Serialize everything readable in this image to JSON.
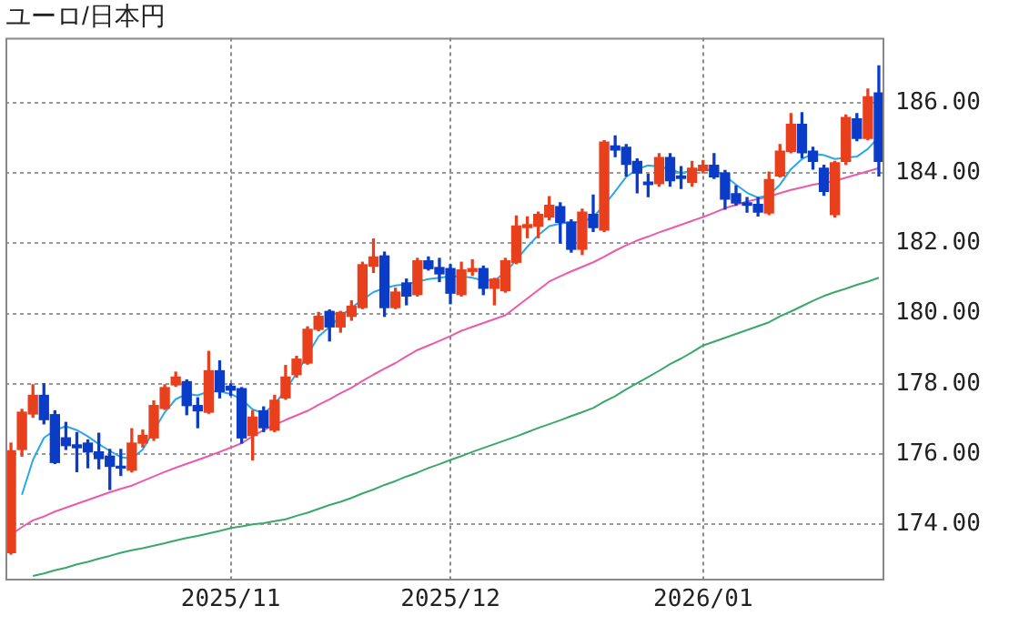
{
  "chart_data": {
    "type": "candlestick",
    "title": "ユーロ/日本円",
    "categories": [
      null,
      null,
      null,
      null,
      null,
      null,
      null,
      null,
      null,
      null,
      null,
      null,
      null,
      null,
      null,
      null,
      null,
      null,
      null,
      null,
      "2025/11",
      null,
      null,
      null,
      null,
      null,
      null,
      null,
      null,
      null,
      null,
      null,
      null,
      null,
      null,
      null,
      null,
      null,
      null,
      null,
      "2025/12",
      null,
      null,
      null,
      null,
      null,
      null,
      null,
      null,
      null,
      null,
      null,
      null,
      null,
      null,
      null,
      null,
      null,
      null,
      null,
      null,
      null,
      null,
      "2026/01",
      null,
      null,
      null,
      null,
      null,
      null,
      null,
      null,
      null,
      null,
      null,
      null,
      null,
      null,
      null,
      null
    ],
    "ohlc": [
      [
        173.19,
        176.31,
        173.15,
        176.09
      ],
      [
        176.13,
        177.27,
        175.94,
        177.19
      ],
      [
        177.14,
        177.97,
        177.05,
        177.67
      ],
      [
        177.67,
        178.0,
        176.86,
        176.98
      ],
      [
        177.12,
        177.23,
        175.73,
        175.76
      ],
      [
        176.46,
        176.9,
        176.13,
        176.24
      ],
      [
        176.26,
        176.61,
        175.5,
        176.18
      ],
      [
        176.31,
        176.4,
        175.61,
        176.06
      ],
      [
        176.06,
        176.59,
        175.58,
        175.87
      ],
      [
        175.94,
        176.13,
        174.99,
        175.65
      ],
      [
        175.65,
        176.13,
        175.39,
        175.6
      ],
      [
        175.54,
        176.72,
        175.49,
        176.31
      ],
      [
        176.31,
        176.68,
        176.2,
        176.53
      ],
      [
        176.46,
        177.51,
        176.39,
        177.38
      ],
      [
        177.3,
        177.97,
        177.27,
        177.89
      ],
      [
        177.97,
        178.33,
        177.93,
        178.19
      ],
      [
        178.06,
        178.11,
        177.12,
        177.38
      ],
      [
        177.38,
        177.6,
        176.75,
        177.23
      ],
      [
        177.19,
        178.92,
        177.16,
        178.37
      ],
      [
        178.37,
        178.65,
        177.6,
        177.78
      ],
      [
        177.93,
        178.0,
        177.67,
        177.82
      ],
      [
        177.86,
        177.89,
        176.31,
        176.46
      ],
      [
        176.53,
        177.23,
        175.83,
        177.05
      ],
      [
        177.23,
        177.34,
        176.64,
        176.75
      ],
      [
        176.68,
        177.67,
        176.64,
        177.53
      ],
      [
        177.6,
        178.52,
        177.56,
        178.19
      ],
      [
        178.26,
        178.78,
        178.19,
        178.7
      ],
      [
        178.59,
        179.62,
        178.56,
        179.55
      ],
      [
        179.55,
        180.03,
        179.51,
        179.92
      ],
      [
        180.06,
        180.1,
        179.22,
        179.62
      ],
      [
        179.62,
        180.06,
        179.47,
        180.03
      ],
      [
        179.92,
        180.36,
        179.81,
        180.21
      ],
      [
        180.17,
        181.46,
        180.14,
        181.39
      ],
      [
        181.35,
        182.12,
        181.17,
        181.61
      ],
      [
        181.64,
        181.75,
        179.92,
        180.17
      ],
      [
        180.17,
        180.72,
        180.14,
        180.61
      ],
      [
        180.87,
        180.98,
        180.25,
        180.5
      ],
      [
        180.54,
        181.57,
        180.5,
        181.5
      ],
      [
        181.5,
        181.61,
        181.24,
        181.28
      ],
      [
        181.31,
        181.57,
        180.91,
        181.13
      ],
      [
        181.28,
        181.39,
        180.28,
        180.58
      ],
      [
        180.54,
        181.46,
        180.5,
        181.24
      ],
      [
        181.2,
        181.53,
        181.09,
        181.28
      ],
      [
        181.28,
        181.35,
        180.54,
        180.72
      ],
      [
        180.72,
        181.0,
        180.25,
        180.98
      ],
      [
        180.65,
        181.57,
        180.61,
        181.5
      ],
      [
        181.46,
        182.78,
        181.42,
        182.49
      ],
      [
        182.45,
        182.75,
        182.16,
        182.53
      ],
      [
        182.49,
        182.89,
        182.16,
        182.82
      ],
      [
        182.75,
        183.33,
        182.67,
        183.08
      ],
      [
        183.04,
        183.15,
        182.01,
        182.6
      ],
      [
        182.6,
        182.67,
        181.75,
        181.83
      ],
      [
        181.83,
        182.97,
        181.68,
        182.89
      ],
      [
        182.82,
        183.37,
        182.34,
        182.45
      ],
      [
        182.38,
        184.92,
        182.34,
        184.88
      ],
      [
        184.77,
        185.06,
        184.47,
        184.66
      ],
      [
        184.73,
        184.81,
        183.92,
        184.25
      ],
      [
        184.33,
        184.4,
        183.44,
        184.0
      ],
      [
        183.74,
        183.96,
        183.33,
        183.67
      ],
      [
        183.7,
        184.55,
        183.63,
        184.44
      ],
      [
        184.44,
        184.55,
        183.63,
        183.78
      ],
      [
        183.92,
        184.18,
        183.56,
        183.85
      ],
      [
        183.74,
        184.33,
        183.63,
        184.14
      ],
      [
        184.07,
        184.36,
        184.0,
        184.22
      ],
      [
        184.22,
        184.55,
        183.85,
        183.89
      ],
      [
        184.0,
        184.07,
        182.97,
        183.26
      ],
      [
        183.41,
        183.63,
        183.08,
        183.15
      ],
      [
        183.15,
        183.3,
        182.89,
        183.08
      ],
      [
        183.11,
        183.3,
        182.78,
        182.89
      ],
      [
        182.86,
        184.03,
        182.82,
        183.81
      ],
      [
        183.92,
        184.81,
        183.89,
        184.62
      ],
      [
        184.62,
        185.69,
        184.58,
        185.39
      ],
      [
        185.39,
        185.72,
        184.44,
        184.58
      ],
      [
        184.62,
        184.73,
        184.11,
        184.33
      ],
      [
        184.14,
        184.22,
        183.37,
        183.48
      ],
      [
        182.82,
        184.33,
        182.75,
        184.29
      ],
      [
        184.33,
        185.65,
        184.25,
        185.58
      ],
      [
        185.54,
        185.69,
        184.92,
        184.99
      ],
      [
        184.99,
        186.39,
        184.95,
        186.17
      ],
      [
        186.28,
        187.05,
        183.92,
        184.33
      ]
    ],
    "colors": [
      "#e8401c",
      "#e8401c",
      "#e8401c",
      "#0a3cc8",
      "#0a3cc8",
      "#0a3cc8",
      "#0a3cc8",
      "#0a3cc8",
      "#0a3cc8",
      "#0a3cc8",
      "#0a3cc8",
      "#e8401c",
      "#e8401c",
      "#e8401c",
      "#e8401c",
      "#e8401c",
      "#0a3cc8",
      "#0a3cc8",
      "#e8401c",
      "#0a3cc8",
      "#0a3cc8",
      "#0a3cc8",
      "#e8401c",
      "#0a3cc8",
      "#e8401c",
      "#e8401c",
      "#e8401c",
      "#e8401c",
      "#e8401c",
      "#0a3cc8",
      "#e8401c",
      "#e8401c",
      "#e8401c",
      "#e8401c",
      "#0a3cc8",
      "#e8401c",
      "#0a3cc8",
      "#e8401c",
      "#0a3cc8",
      "#0a3cc8",
      "#0a3cc8",
      "#e8401c",
      "#e8401c",
      "#0a3cc8",
      "#e8401c",
      "#e8401c",
      "#e8401c",
      "#e8401c",
      "#e8401c",
      "#e8401c",
      "#0a3cc8",
      "#0a3cc8",
      "#e8401c",
      "#0a3cc8",
      "#e8401c",
      "#0a3cc8",
      "#0a3cc8",
      "#0a3cc8",
      "#0a3cc8",
      "#e8401c",
      "#0a3cc8",
      "#0a3cc8",
      "#e8401c",
      "#e8401c",
      "#0a3cc8",
      "#0a3cc8",
      "#0a3cc8",
      "#0a3cc8",
      "#0a3cc8",
      "#e8401c",
      "#e8401c",
      "#e8401c",
      "#0a3cc8",
      "#0a3cc8",
      "#0a3cc8",
      "#e8401c",
      "#e8401c",
      "#0a3cc8",
      "#e8401c",
      "#0a3cc8"
    ],
    "series": [
      {
        "type": "line",
        "color": "#2aa8e6",
        "values": [
          null,
          174.84,
          175.83,
          176.46,
          176.68,
          176.79,
          176.68,
          176.5,
          176.28,
          176.09,
          175.91,
          175.87,
          176.13,
          null,
          177.19,
          177.56,
          177.71,
          177.67,
          177.78,
          177.78,
          177.71,
          177.56,
          177.27,
          177.16,
          177.42,
          177.82,
          178.3,
          null,
          179.35,
          179.62,
          179.92,
          180.17,
          180.39,
          180.61,
          180.72,
          180.8,
          180.83,
          180.91,
          180.98,
          181.02,
          181.06,
          181.06,
          181.02,
          180.94,
          180.94,
          181.17,
          181.53,
          181.9,
          182.23,
          182.49,
          182.56,
          182.6,
          182.6,
          182.75,
          183.08,
          183.48,
          183.89,
          184.11,
          184.22,
          184.18,
          184.11,
          184.0,
          184.07,
          184.11,
          184.07,
          183.92,
          183.67,
          183.44,
          183.3,
          183.37,
          183.67,
          184.11,
          184.4,
          184.55,
          184.51,
          184.4,
          184.44,
          184.47,
          184.69,
          185.03
        ]
      },
      {
        "type": "line",
        "color": "#ec5aa8",
        "values": [
          173.7,
          173.92,
          174.11,
          174.22,
          174.36,
          174.47,
          174.58,
          174.69,
          174.8,
          174.91,
          175.01,
          175.1,
          175.23,
          175.36,
          175.49,
          175.61,
          175.72,
          175.83,
          175.94,
          176.06,
          176.18,
          176.31,
          176.5,
          176.68,
          176.83,
          176.97,
          177.1,
          177.23,
          177.4,
          177.56,
          177.73,
          177.89,
          178.08,
          178.26,
          178.43,
          178.59,
          178.78,
          178.96,
          179.09,
          179.22,
          179.36,
          179.51,
          179.62,
          179.73,
          179.84,
          179.95,
          180.19,
          180.43,
          180.67,
          180.91,
          181.06,
          181.2,
          181.33,
          181.46,
          181.62,
          181.79,
          181.94,
          182.08,
          182.19,
          182.31,
          182.42,
          182.53,
          182.64,
          182.75,
          182.87,
          183.0,
          183.1,
          183.19,
          183.26,
          183.33,
          183.43,
          183.52,
          183.59,
          183.67,
          183.72,
          183.78,
          183.87,
          183.96,
          184.05,
          184.14
        ]
      },
      {
        "type": "line",
        "color": "#3aa86a",
        "values": [
          null,
          null,
          172.53,
          172.6,
          172.69,
          172.76,
          172.86,
          172.93,
          173.02,
          173.1,
          173.19,
          173.26,
          173.32,
          173.39,
          173.46,
          173.54,
          173.61,
          173.67,
          173.74,
          173.81,
          173.89,
          173.94,
          174.0,
          174.03,
          174.09,
          174.14,
          174.24,
          174.33,
          174.44,
          174.55,
          174.64,
          174.75,
          174.88,
          174.99,
          175.12,
          175.23,
          175.36,
          175.47,
          175.6,
          175.71,
          175.83,
          175.94,
          176.06,
          176.17,
          176.28,
          176.39,
          176.5,
          176.62,
          176.74,
          176.85,
          176.96,
          177.08,
          177.19,
          177.31,
          177.49,
          177.65,
          177.84,
          178.02,
          178.19,
          178.37,
          178.56,
          178.72,
          178.9,
          179.09,
          179.2,
          179.31,
          179.42,
          179.53,
          179.64,
          179.75,
          179.92,
          180.06,
          180.21,
          180.36,
          180.5,
          180.61,
          180.71,
          180.82,
          180.91,
          181.02
        ]
      }
    ],
    "ylim": [
      172.45,
      187.85
    ],
    "yticks": [
      {
        "value": 174,
        "label": "174.00"
      },
      {
        "value": 176,
        "label": "176.00"
      },
      {
        "value": 178,
        "label": "178.00"
      },
      {
        "value": 180,
        "label": "180.00"
      },
      {
        "value": 182,
        "label": "182.00"
      },
      {
        "value": 184,
        "label": "184.00"
      },
      {
        "value": 186,
        "label": "186.00"
      }
    ],
    "grid": true
  }
}
